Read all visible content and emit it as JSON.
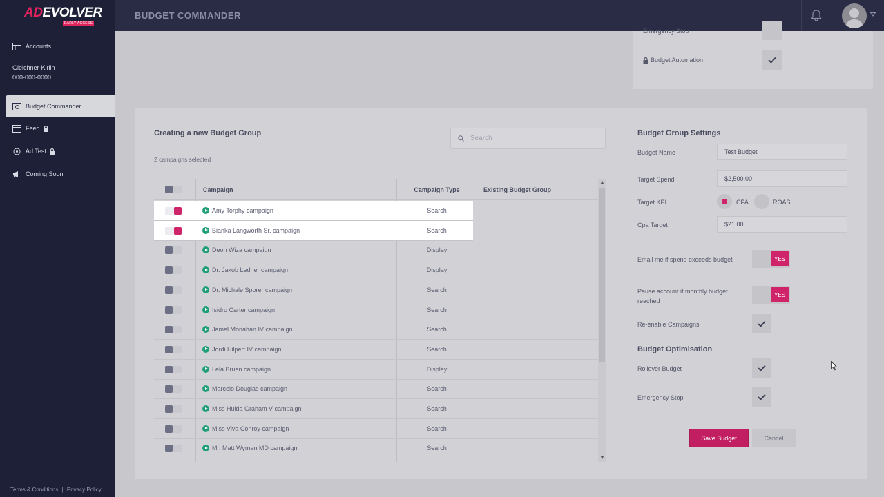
{
  "brand": {
    "logo_ad": "AD",
    "logo_rest": "EVOLVER",
    "logo_sub": "EARLY ACCESS"
  },
  "sidebar": {
    "accounts_label": "Accounts",
    "account_name": "Gleichner-Kirlin",
    "account_id": "000-000-0000",
    "items": [
      {
        "label": "Budget Commander",
        "icon": "budget-icon",
        "locked": false,
        "active": true
      },
      {
        "label": "Feed",
        "icon": "feed-icon",
        "locked": true
      },
      {
        "label": "Ad Test",
        "icon": "adtest-icon",
        "locked": true
      },
      {
        "label": "Coming Soon",
        "icon": "megaphone-icon",
        "locked": false
      }
    ],
    "footer": {
      "terms": "Terms & Conditions",
      "sep": "|",
      "privacy": "Privacy Policy"
    }
  },
  "header": {
    "title": "BUDGET COMMANDER"
  },
  "top_card": {
    "emergency_stop_label": "Emergency Stop",
    "budget_automation_label": "Budget Automation"
  },
  "main": {
    "title": "Creating a new Budget Group",
    "selected_count": "2 campaigns selected",
    "search": {
      "placeholder": "Search"
    },
    "table": {
      "columns": [
        "Campaign",
        "Campaign Type",
        "Existing Budget Group"
      ],
      "rows": [
        {
          "campaign": "Amy Torphy campaign",
          "type": "Search",
          "group": "",
          "selected": true
        },
        {
          "campaign": "Bianka Langworth Sr. campaign",
          "type": "Search",
          "group": "",
          "selected": true
        },
        {
          "campaign": "Deon Wiza campaign",
          "type": "Display",
          "group": "",
          "selected": false
        },
        {
          "campaign": "Dr. Jakob Ledner campaign",
          "type": "Display",
          "group": "",
          "selected": false
        },
        {
          "campaign": "Dr. Michale Sporer campaign",
          "type": "Search",
          "group": "",
          "selected": false
        },
        {
          "campaign": "Isidro Carter campaign",
          "type": "Search",
          "group": "",
          "selected": false
        },
        {
          "campaign": "Jamel Monahan IV campaign",
          "type": "Search",
          "group": "",
          "selected": false
        },
        {
          "campaign": "Jordi Hilpert IV campaign",
          "type": "Search",
          "group": "",
          "selected": false
        },
        {
          "campaign": "Lela Bruen campaign",
          "type": "Display",
          "group": "",
          "selected": false
        },
        {
          "campaign": "Marcelo Douglas campaign",
          "type": "Search",
          "group": "",
          "selected": false
        },
        {
          "campaign": "Miss Hulda Graham V campaign",
          "type": "Search",
          "group": "",
          "selected": false
        },
        {
          "campaign": "Miss Viva Conroy campaign",
          "type": "Search",
          "group": "",
          "selected": false
        },
        {
          "campaign": "Mr. Matt Wyman MD campaign",
          "type": "Search",
          "group": "",
          "selected": false
        }
      ]
    }
  },
  "settings": {
    "title": "Budget Group Settings",
    "budget_name_label": "Budget Name",
    "budget_name_value": "Test Budget",
    "target_spend_label": "Target Spend",
    "target_spend_value": "$2,500.00",
    "target_kpi_label": "Target KPI",
    "kpi_options": [
      "CPA",
      "ROAS"
    ],
    "kpi_selected": "CPA",
    "cpa_target_label": "Cpa Target",
    "cpa_target_value": "$21.00",
    "email_label": "Email me if spend exceeds budget",
    "email_toggle": "YES",
    "pause_label": "Pause account if monthly budget reached",
    "pause_toggle": "YES",
    "reenable_label": "Re-enable Campaigns",
    "optimisation_title": "Budget Optimisation",
    "rollover_label": "Rollover Budget",
    "emergency_label": "Emergency Stop",
    "save_label": "Save Budget",
    "cancel_label": "Cancel"
  },
  "colors": {
    "accent": "#d0246a",
    "sidebar": "#1e2038",
    "header": "#2a2c45",
    "play": "#1f9e78"
  }
}
